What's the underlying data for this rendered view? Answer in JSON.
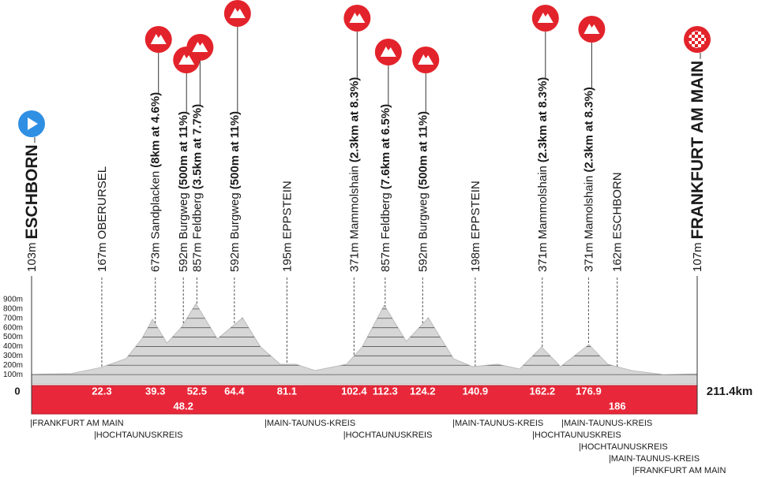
{
  "chart_data": {
    "type": "elevation-profile",
    "x": [
      0,
      12.5,
      22,
      30,
      35,
      38.4,
      43,
      47.6,
      52.2,
      59,
      67,
      72.7,
      79,
      84,
      90,
      100,
      105,
      112,
      119,
      126,
      134,
      140,
      148,
      155,
      162,
      168,
      177,
      183,
      190.6,
      200.6,
      211.4
    ],
    "values": [
      103,
      110,
      176,
      270,
      480,
      690,
      437,
      605,
      857,
      480,
      705,
      395,
      210,
      210,
      143,
      210,
      395,
      840,
      455,
      705,
      270,
      185,
      210,
      160,
      395,
      185,
      420,
      210,
      143,
      100,
      107
    ],
    "xlim": [
      0,
      211.4
    ],
    "ylim": [
      0,
      900
    ],
    "yticks": [
      {
        "value": 100,
        "label": "100m"
      },
      {
        "value": 200,
        "label": "200m"
      },
      {
        "value": 300,
        "label": "300m"
      },
      {
        "value": 400,
        "label": "400m"
      },
      {
        "value": 500,
        "label": "500m"
      },
      {
        "value": 600,
        "label": "600m"
      },
      {
        "value": 700,
        "label": "700m"
      },
      {
        "value": 800,
        "label": "800m"
      },
      {
        "value": 900,
        "label": "900m"
      }
    ],
    "grid": true,
    "color": "#d6d6d6",
    "ground_color": "#e8283a",
    "waypoints": [
      {
        "kind": "start",
        "altitude": "103m",
        "name": "ESCHBORN",
        "km": 0
      },
      {
        "kind": "place",
        "altitude": "167m",
        "name": "OBERURSEL",
        "km": 22.3
      },
      {
        "kind": "climb",
        "altitude": "673m",
        "name": "Sandplacken",
        "climb": "(8km at 4.6%)",
        "km": 39.3
      },
      {
        "kind": "climb",
        "altitude": "592m",
        "name": "Burgweg",
        "climb": "(500m at 11%)",
        "km": 48.2
      },
      {
        "kind": "climb",
        "altitude": "857m",
        "name": "Feldberg",
        "climb": "(3.5km at 7.7%)",
        "km": 52.5
      },
      {
        "kind": "climb",
        "altitude": "592m",
        "name": "Burgweg",
        "climb": "(500m at 11%)",
        "km": 64.4
      },
      {
        "kind": "place",
        "altitude": "195m",
        "name": "EPPSTEIN",
        "km": 81.1
      },
      {
        "kind": "climb",
        "altitude": "371m",
        "name": "Mammolshain",
        "climb": "(2.3km at 8.3%)",
        "km": 102.4
      },
      {
        "kind": "climb",
        "altitude": "857m",
        "name": "Feldberg",
        "climb": "(7.6km at 6.5%)",
        "km": 112.3
      },
      {
        "kind": "climb",
        "altitude": "592m",
        "name": "Burgweg",
        "climb": "(500m at 11%)",
        "km": 124.2
      },
      {
        "kind": "place",
        "altitude": "198m",
        "name": "EPPSTEIN",
        "km": 140.9
      },
      {
        "kind": "climb",
        "altitude": "371m",
        "name": "Mammolshain",
        "climb": "(2.3km at 8.3%)",
        "km": 162.2
      },
      {
        "kind": "climb",
        "altitude": "371m",
        "name": "Mamolshain",
        "climb": "(2.3km at 8.3%)",
        "km": 176.9
      },
      {
        "kind": "place",
        "altitude": "162m",
        "name": "ESCHBORN",
        "km": 186
      },
      {
        "kind": "finish",
        "altitude": "107m",
        "name": "FRANKFURT AM MAIN",
        "km": 211.4,
        "km_label": "211.4km"
      }
    ],
    "regions": [
      {
        "label": "|FRANKFURT AM MAIN",
        "km": 0
      },
      {
        "label": "|HOCHTAUNUSKREIS",
        "km": 20.3
      },
      {
        "label": "|MAIN-TAUNUS-KREIS",
        "km": 74.5
      },
      {
        "label": "|HOCHTAUNUSKREIS",
        "km": 99.5
      },
      {
        "label": "|MAIN-TAUNUS-KREIS",
        "km": 134.2
      },
      {
        "label": "|HOCHTAUNUSKREIS",
        "km": 159.5
      },
      {
        "label": "|MAIN-TAUNUS-KREIS",
        "km": 168.8
      },
      {
        "label": "|HOCHTAUNUSKREIS",
        "km": 174.3
      },
      {
        "label": "|MAIN-TAUNUS-KREIS",
        "km": 183.8
      },
      {
        "label": "|FRANKFURT AM MAIN",
        "km": 191.3
      }
    ]
  }
}
